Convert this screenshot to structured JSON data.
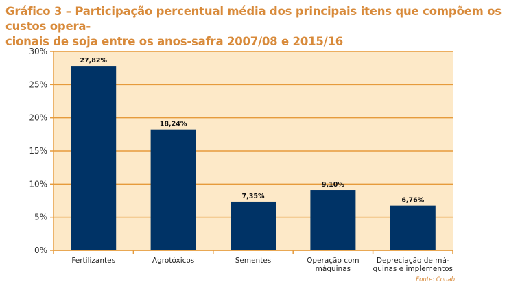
{
  "chart_data": {
    "type": "bar",
    "title": "Gráfico 3 – Participação percentual média dos principais itens que compõem os custos operacionais de soja entre os anos-safra 2007/08 e 2015/16",
    "title_lines": [
      "Gráfico 3 – Participação percentual média dos principais itens que compõem os custos opera-",
      "cionais de soja entre os anos-safra 2007/08 e 2015/16"
    ],
    "categories": [
      "Fertilizantes",
      "Agrotóxicos",
      "Sementes",
      "Operação com máquinas",
      "Depreciação de máquinas e implementos"
    ],
    "category_lines": [
      [
        "Fertilizantes"
      ],
      [
        "Agrotóxicos"
      ],
      [
        "Sementes"
      ],
      [
        "Operação com",
        "máquinas"
      ],
      [
        "Depreciação de má-",
        "quinas e implementos"
      ]
    ],
    "values": [
      27.82,
      18.24,
      7.35,
      9.1,
      6.76
    ],
    "data_labels": [
      "27,82%",
      "18,24%",
      "7,35%",
      "9,10%",
      "6,76%"
    ],
    "ylim": [
      0,
      30
    ],
    "yticks": [
      0,
      5,
      10,
      15,
      20,
      25,
      30
    ],
    "ytick_labels": [
      "0%",
      "5%",
      "10%",
      "15%",
      "20%",
      "25%",
      "30%"
    ],
    "xlabel": "",
    "ylabel": "",
    "grid": true,
    "source": "Fonte: Conab",
    "colors": {
      "bar": "#003366",
      "plot_background": "#fde9c8",
      "grid": "#e69b3c",
      "axis": "#e69b3c",
      "title": "#d88a3a"
    }
  }
}
